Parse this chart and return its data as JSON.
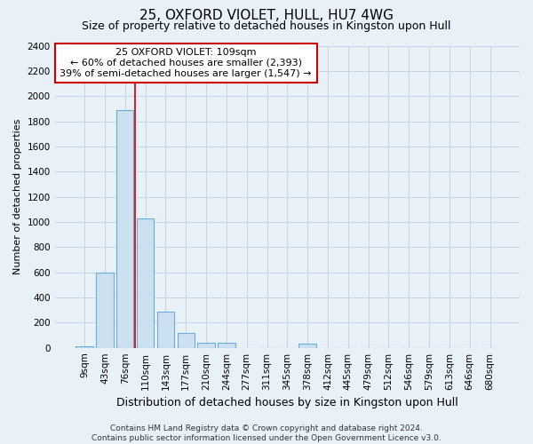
{
  "title": "25, OXFORD VIOLET, HULL, HU7 4WG",
  "subtitle": "Size of property relative to detached houses in Kingston upon Hull",
  "xlabel": "Distribution of detached houses by size in Kingston upon Hull",
  "ylabel": "Number of detached properties",
  "footer_line1": "Contains HM Land Registry data © Crown copyright and database right 2024.",
  "footer_line2": "Contains public sector information licensed under the Open Government Licence v3.0.",
  "bar_labels": [
    "9sqm",
    "43sqm",
    "76sqm",
    "110sqm",
    "143sqm",
    "177sqm",
    "210sqm",
    "244sqm",
    "277sqm",
    "311sqm",
    "345sqm",
    "378sqm",
    "412sqm",
    "445sqm",
    "479sqm",
    "512sqm",
    "546sqm",
    "579sqm",
    "613sqm",
    "646sqm",
    "680sqm"
  ],
  "bar_values": [
    15,
    600,
    1890,
    1030,
    285,
    115,
    43,
    40,
    0,
    0,
    0,
    30,
    0,
    0,
    0,
    0,
    0,
    0,
    0,
    0,
    0
  ],
  "bar_color": "#cce0f0",
  "bar_edge_color": "#6aaed6",
  "grid_color": "#c8d4e0",
  "background_color": "#e8f0f8",
  "annotation_text": "25 OXFORD VIOLET: 109sqm\n← 60% of detached houses are smaller (2,393)\n39% of semi-detached houses are larger (1,547) →",
  "annotation_box_facecolor": "white",
  "annotation_box_edgecolor": "#cc0000",
  "vline_position": 2.5,
  "vline_color": "#cc0000",
  "ylim": [
    0,
    2400
  ],
  "yticks": [
    0,
    200,
    400,
    600,
    800,
    1000,
    1200,
    1400,
    1600,
    1800,
    2000,
    2200,
    2400
  ],
  "title_fontsize": 11,
  "subtitle_fontsize": 9,
  "ylabel_fontsize": 8,
  "xlabel_fontsize": 9,
  "tick_fontsize": 7.5,
  "annotation_fontsize": 8,
  "footer_fontsize": 6.5
}
